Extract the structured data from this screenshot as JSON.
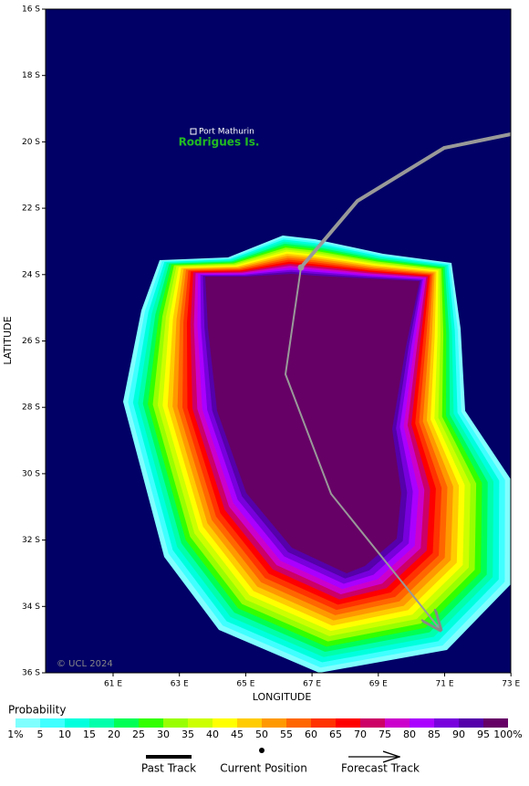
{
  "map": {
    "lat_ticks": [
      "16 S",
      "18 S",
      "20 S",
      "22 S",
      "24 S",
      "26 S",
      "28 S",
      "30 S",
      "32 S",
      "34 S",
      "36 S"
    ],
    "lon_ticks": [
      "61 E",
      "63 E",
      "65 E",
      "67 E",
      "69 E",
      "71 E",
      "73 E"
    ],
    "x_label": "LONGITUDE",
    "y_label": "LATITUDE",
    "places": [
      "Port Mathurin",
      "Rodrigues Is."
    ],
    "copyright": "© UCL 2024"
  },
  "legend": {
    "title": "Probability",
    "labels": [
      "1%",
      "5",
      "10",
      "15",
      "20",
      "25",
      "30",
      "35",
      "40",
      "45",
      "50",
      "55",
      "60",
      "65",
      "70",
      "75",
      "80",
      "85",
      "90",
      "95",
      "100%"
    ],
    "colors": [
      "#80ffff",
      "#40ffff",
      "#00ffdd",
      "#00ffaa",
      "#00ff55",
      "#33ff00",
      "#99ff00",
      "#ccff00",
      "#ffff00",
      "#ffcc00",
      "#ff9900",
      "#ff6600",
      "#ff3300",
      "#ff0000",
      "#cc0066",
      "#cc00cc",
      "#aa00ff",
      "#7700dd",
      "#5500aa",
      "#660066"
    ]
  },
  "track_legend": [
    "Past Track",
    "Current Position",
    "Forecast Track"
  ]
}
